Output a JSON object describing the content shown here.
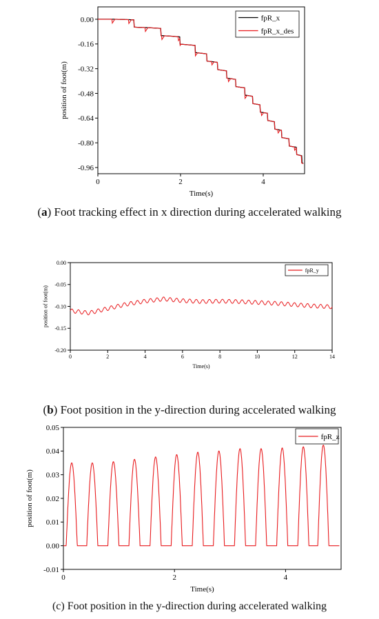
{
  "chart_data": [
    {
      "type": "line",
      "title": "",
      "xlabel": "Time(s)",
      "ylabel": "position of foot(m)",
      "xlim": [
        0,
        5
      ],
      "ylim": [
        -1.0,
        0.08
      ],
      "xticks": [
        0,
        2,
        4
      ],
      "xtick_labels": [
        "0",
        "2",
        "4"
      ],
      "yticks": [
        0.0,
        -0.16,
        -0.32,
        -0.48,
        -0.64,
        -0.8,
        -0.96
      ],
      "ytick_labels": [
        "0.00",
        "-0.16",
        "-0.32",
        "-0.48",
        "-0.64",
        "-0.80",
        "-0.96"
      ],
      "legend_position": "top-right",
      "grid": false,
      "series": [
        {
          "name": "fpR_x",
          "color": "#000000",
          "x": [
            0,
            0.2,
            0.4,
            0.6,
            0.8,
            1.0,
            1.2,
            1.4,
            1.6,
            1.8,
            2.0,
            2.2,
            2.4,
            2.6,
            2.8,
            3.0,
            3.2,
            3.4,
            3.6,
            3.8,
            4.0,
            4.2,
            4.4,
            4.6,
            4.8,
            4.97
          ],
          "y": [
            0.0,
            0.0,
            0.0,
            -0.01,
            -0.02,
            -0.04,
            -0.05,
            -0.07,
            -0.09,
            -0.11,
            -0.14,
            -0.17,
            -0.2,
            -0.24,
            -0.28,
            -0.33,
            -0.38,
            -0.43,
            -0.48,
            -0.54,
            -0.6,
            -0.66,
            -0.73,
            -0.79,
            -0.85,
            -0.92
          ]
        },
        {
          "name": "fpR_x_des",
          "color": "#e8191c",
          "x": [
            0,
            0.2,
            0.4,
            0.6,
            0.8,
            1.0,
            1.2,
            1.4,
            1.6,
            1.8,
            2.0,
            2.2,
            2.4,
            2.6,
            2.8,
            3.0,
            3.2,
            3.4,
            3.6,
            3.8,
            4.0,
            4.2,
            4.4,
            4.6,
            4.8,
            4.97
          ],
          "y": [
            0.0,
            0.0,
            0.0,
            -0.01,
            -0.02,
            -0.04,
            -0.05,
            -0.07,
            -0.09,
            -0.11,
            -0.14,
            -0.17,
            -0.2,
            -0.24,
            -0.28,
            -0.33,
            -0.38,
            -0.43,
            -0.48,
            -0.54,
            -0.6,
            -0.66,
            -0.73,
            -0.79,
            -0.85,
            -0.93
          ]
        }
      ]
    },
    {
      "type": "line",
      "title": "",
      "xlabel": "Time(s)",
      "ylabel": "position of foot(m)",
      "xlim": [
        0,
        14
      ],
      "ylim": [
        -0.2,
        0.0
      ],
      "xticks": [
        0,
        2,
        4,
        6,
        8,
        10,
        12,
        14
      ],
      "xtick_labels": [
        "0",
        "2",
        "4",
        "6",
        "8",
        "10",
        "12",
        "14"
      ],
      "yticks": [
        0.0,
        -0.05,
        -0.1,
        -0.15,
        -0.2
      ],
      "ytick_labels": [
        "0.00",
        "-0.05",
        "-0.10",
        "-0.15",
        "-0.20"
      ],
      "legend_position": "top-right",
      "grid": false,
      "series": [
        {
          "name": "fpR_y",
          "color": "#e8191c",
          "x": [
            0,
            1,
            2,
            3,
            4,
            5,
            6,
            7,
            8,
            9,
            10,
            11,
            12,
            13,
            14
          ],
          "y": [
            -0.11,
            -0.115,
            -0.105,
            -0.095,
            -0.088,
            -0.083,
            -0.087,
            -0.089,
            -0.088,
            -0.089,
            -0.091,
            -0.093,
            -0.096,
            -0.099,
            -0.101
          ]
        }
      ]
    },
    {
      "type": "line",
      "title": "",
      "xlabel": "Time(s)",
      "ylabel": "position of foot(m)",
      "xlim": [
        0,
        5
      ],
      "ylim": [
        -0.01,
        0.05
      ],
      "xticks": [
        0,
        2,
        4
      ],
      "xtick_labels": [
        "0",
        "2",
        "4"
      ],
      "yticks": [
        -0.01,
        0.0,
        0.01,
        0.02,
        0.03,
        0.04,
        0.05
      ],
      "ytick_labels": [
        "-0.01",
        "0.00",
        "0.01",
        "0.02",
        "0.03",
        "0.04",
        "0.05"
      ],
      "legend_position": "top-right",
      "grid": false,
      "series": [
        {
          "name": "fpR_z",
          "color": "#e8191c",
          "peak_times": [
            0.15,
            0.52,
            0.9,
            1.28,
            1.66,
            2.04,
            2.42,
            2.8,
            3.18,
            3.56,
            3.94,
            4.32,
            4.68
          ],
          "peak_heights": [
            0.035,
            0.035,
            0.0355,
            0.0365,
            0.0375,
            0.0385,
            0.0395,
            0.04,
            0.041,
            0.041,
            0.0413,
            0.0418,
            0.0425
          ]
        }
      ]
    }
  ],
  "captions": {
    "a_label": "a",
    "a_text": " Foot tracking effect in x direction during accelerated walking",
    "b_label": "b",
    "b_text": " Foot position in the y-direction during accelerated walking",
    "c_text": "(c) Foot position in the y-direction during accelerated walking"
  }
}
